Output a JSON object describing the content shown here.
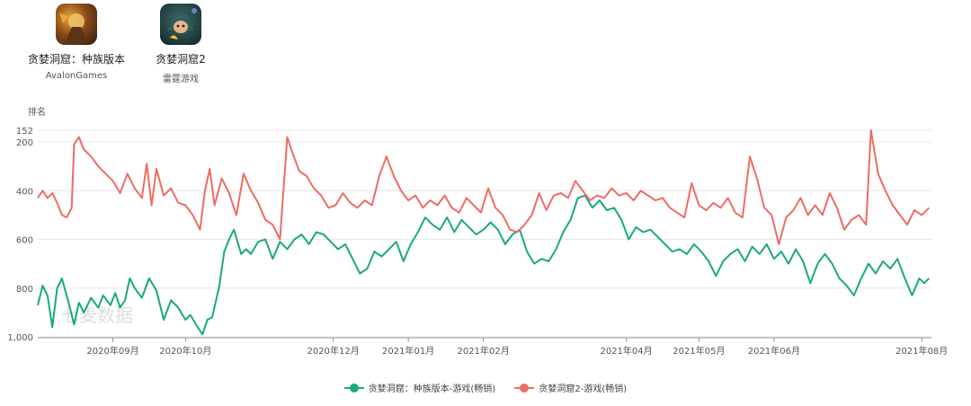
{
  "apps": [
    {
      "name": "贪婪洞窟：种族版本",
      "developer": "AvalonGames",
      "icon": "dungeon-warrior-app-icon"
    },
    {
      "name": "贪婪洞窟2",
      "developer": "雷霆游戏",
      "icon": "hooded-character-app-icon"
    }
  ],
  "watermark": "七麦数据",
  "colors": {
    "series1": "#1aa97e",
    "series2": "#ee6c63",
    "grid": "#e8e8e8"
  },
  "chart_data": {
    "type": "line",
    "ylabel": "排名",
    "y_inverted": true,
    "ylim": [
      152,
      1000
    ],
    "yticks": [
      152,
      200,
      400,
      600,
      800,
      1000
    ],
    "ytick_labels": [
      "152",
      "200",
      "400",
      "600",
      "800",
      "1,000"
    ],
    "xlim": [
      "2020-08-01",
      "2021-08-05"
    ],
    "xticks": [
      "2020-09-01",
      "2020-10-01",
      "2020-12-01",
      "2021-01-01",
      "2021-02-01",
      "2021-04-01",
      "2021-05-01",
      "2021-06-01",
      "2021-08-01"
    ],
    "xtick_labels": [
      "2020年09月",
      "2020年10月",
      "2020年12月",
      "2021年01月",
      "2021年02月",
      "2021年04月",
      "2021年05月",
      "2021年06月",
      "2021年08月"
    ],
    "grid": true,
    "legend_position": "bottom",
    "series": [
      {
        "name": "贪婪洞窟：种族版本-游戏(畅销)",
        "points": [
          [
            "2020-08-01",
            870
          ],
          [
            "2020-08-03",
            790
          ],
          [
            "2020-08-05",
            830
          ],
          [
            "2020-08-07",
            960
          ],
          [
            "2020-08-09",
            800
          ],
          [
            "2020-08-11",
            760
          ],
          [
            "2020-08-14",
            870
          ],
          [
            "2020-08-16",
            950
          ],
          [
            "2020-08-18",
            860
          ],
          [
            "2020-08-20",
            900
          ],
          [
            "2020-08-23",
            840
          ],
          [
            "2020-08-26",
            880
          ],
          [
            "2020-08-28",
            830
          ],
          [
            "2020-08-31",
            870
          ],
          [
            "2020-09-02",
            820
          ],
          [
            "2020-09-04",
            880
          ],
          [
            "2020-09-06",
            850
          ],
          [
            "2020-09-08",
            760
          ],
          [
            "2020-09-10",
            800
          ],
          [
            "2020-09-13",
            840
          ],
          [
            "2020-09-16",
            760
          ],
          [
            "2020-09-19",
            810
          ],
          [
            "2020-09-22",
            930
          ],
          [
            "2020-09-25",
            850
          ],
          [
            "2020-09-28",
            880
          ],
          [
            "2020-10-01",
            930
          ],
          [
            "2020-10-03",
            910
          ],
          [
            "2020-10-06",
            960
          ],
          [
            "2020-10-08",
            990
          ],
          [
            "2020-10-10",
            930
          ],
          [
            "2020-10-12",
            920
          ],
          [
            "2020-10-15",
            790
          ],
          [
            "2020-10-17",
            650
          ],
          [
            "2020-10-19",
            600
          ],
          [
            "2020-10-21",
            560
          ],
          [
            "2020-10-24",
            660
          ],
          [
            "2020-10-26",
            640
          ],
          [
            "2020-10-28",
            660
          ],
          [
            "2020-10-31",
            610
          ],
          [
            "2020-11-03",
            600
          ],
          [
            "2020-11-06",
            680
          ],
          [
            "2020-11-09",
            610
          ],
          [
            "2020-11-12",
            640
          ],
          [
            "2020-11-15",
            600
          ],
          [
            "2020-11-18",
            580
          ],
          [
            "2020-11-21",
            620
          ],
          [
            "2020-11-24",
            570
          ],
          [
            "2020-11-27",
            580
          ],
          [
            "2020-11-30",
            610
          ],
          [
            "2020-12-03",
            640
          ],
          [
            "2020-12-06",
            620
          ],
          [
            "2020-12-09",
            680
          ],
          [
            "2020-12-12",
            740
          ],
          [
            "2020-12-15",
            720
          ],
          [
            "2020-12-18",
            650
          ],
          [
            "2020-12-21",
            670
          ],
          [
            "2020-12-24",
            640
          ],
          [
            "2020-12-27",
            610
          ],
          [
            "2020-12-30",
            690
          ],
          [
            "2021-01-02",
            620
          ],
          [
            "2021-01-05",
            570
          ],
          [
            "2021-01-08",
            510
          ],
          [
            "2021-01-11",
            540
          ],
          [
            "2021-01-14",
            560
          ],
          [
            "2021-01-17",
            510
          ],
          [
            "2021-01-20",
            570
          ],
          [
            "2021-01-23",
            520
          ],
          [
            "2021-01-26",
            550
          ],
          [
            "2021-01-29",
            580
          ],
          [
            "2021-02-01",
            560
          ],
          [
            "2021-02-04",
            530
          ],
          [
            "2021-02-07",
            560
          ],
          [
            "2021-02-10",
            620
          ],
          [
            "2021-02-13",
            580
          ],
          [
            "2021-02-16",
            560
          ],
          [
            "2021-02-19",
            650
          ],
          [
            "2021-02-22",
            700
          ],
          [
            "2021-02-25",
            680
          ],
          [
            "2021-02-28",
            690
          ],
          [
            "2021-03-03",
            640
          ],
          [
            "2021-03-06",
            570
          ],
          [
            "2021-03-09",
            520
          ],
          [
            "2021-03-12",
            430
          ],
          [
            "2021-03-15",
            420
          ],
          [
            "2021-03-18",
            470
          ],
          [
            "2021-03-21",
            440
          ],
          [
            "2021-03-24",
            480
          ],
          [
            "2021-03-27",
            470
          ],
          [
            "2021-03-30",
            520
          ],
          [
            "2021-04-02",
            600
          ],
          [
            "2021-04-05",
            550
          ],
          [
            "2021-04-08",
            570
          ],
          [
            "2021-04-11",
            560
          ],
          [
            "2021-04-14",
            590
          ],
          [
            "2021-04-17",
            620
          ],
          [
            "2021-04-20",
            650
          ],
          [
            "2021-04-23",
            640
          ],
          [
            "2021-04-26",
            660
          ],
          [
            "2021-04-29",
            620
          ],
          [
            "2021-05-02",
            650
          ],
          [
            "2021-05-05",
            690
          ],
          [
            "2021-05-08",
            750
          ],
          [
            "2021-05-11",
            690
          ],
          [
            "2021-05-14",
            660
          ],
          [
            "2021-05-17",
            640
          ],
          [
            "2021-05-20",
            690
          ],
          [
            "2021-05-23",
            630
          ],
          [
            "2021-05-26",
            660
          ],
          [
            "2021-05-29",
            620
          ],
          [
            "2021-06-01",
            680
          ],
          [
            "2021-06-04",
            650
          ],
          [
            "2021-06-07",
            700
          ],
          [
            "2021-06-10",
            640
          ],
          [
            "2021-06-13",
            690
          ],
          [
            "2021-06-16",
            780
          ],
          [
            "2021-06-19",
            700
          ],
          [
            "2021-06-22",
            660
          ],
          [
            "2021-06-25",
            700
          ],
          [
            "2021-06-28",
            760
          ],
          [
            "2021-07-01",
            790
          ],
          [
            "2021-07-04",
            830
          ],
          [
            "2021-07-07",
            760
          ],
          [
            "2021-07-10",
            700
          ],
          [
            "2021-07-13",
            740
          ],
          [
            "2021-07-16",
            690
          ],
          [
            "2021-07-19",
            720
          ],
          [
            "2021-07-22",
            680
          ],
          [
            "2021-07-25",
            760
          ],
          [
            "2021-07-28",
            830
          ],
          [
            "2021-07-31",
            760
          ],
          [
            "2021-08-02",
            780
          ],
          [
            "2021-08-04",
            760
          ]
        ]
      },
      {
        "name": "贪婪洞窟2-游戏(畅销)",
        "points": [
          [
            "2020-08-01",
            430
          ],
          [
            "2020-08-03",
            400
          ],
          [
            "2020-08-05",
            430
          ],
          [
            "2020-08-07",
            410
          ],
          [
            "2020-08-09",
            450
          ],
          [
            "2020-08-11",
            500
          ],
          [
            "2020-08-13",
            510
          ],
          [
            "2020-08-15",
            470
          ],
          [
            "2020-08-16",
            210
          ],
          [
            "2020-08-18",
            180
          ],
          [
            "2020-08-20",
            230
          ],
          [
            "2020-08-23",
            260
          ],
          [
            "2020-08-26",
            300
          ],
          [
            "2020-08-29",
            330
          ],
          [
            "2020-09-01",
            360
          ],
          [
            "2020-09-04",
            410
          ],
          [
            "2020-09-07",
            330
          ],
          [
            "2020-09-10",
            390
          ],
          [
            "2020-09-13",
            430
          ],
          [
            "2020-09-15",
            290
          ],
          [
            "2020-09-17",
            460
          ],
          [
            "2020-09-19",
            310
          ],
          [
            "2020-09-22",
            420
          ],
          [
            "2020-09-25",
            390
          ],
          [
            "2020-09-28",
            450
          ],
          [
            "2020-10-01",
            460
          ],
          [
            "2020-10-04",
            500
          ],
          [
            "2020-10-07",
            560
          ],
          [
            "2020-10-09",
            400
          ],
          [
            "2020-10-11",
            310
          ],
          [
            "2020-10-13",
            460
          ],
          [
            "2020-10-16",
            350
          ],
          [
            "2020-10-19",
            410
          ],
          [
            "2020-10-22",
            500
          ],
          [
            "2020-10-25",
            330
          ],
          [
            "2020-10-28",
            400
          ],
          [
            "2020-10-31",
            450
          ],
          [
            "2020-11-03",
            520
          ],
          [
            "2020-11-06",
            540
          ],
          [
            "2020-11-09",
            600
          ],
          [
            "2020-11-12",
            180
          ],
          [
            "2020-11-14",
            240
          ],
          [
            "2020-11-17",
            320
          ],
          [
            "2020-11-20",
            340
          ],
          [
            "2020-11-23",
            390
          ],
          [
            "2020-11-26",
            420
          ],
          [
            "2020-11-29",
            470
          ],
          [
            "2020-12-02",
            460
          ],
          [
            "2020-12-05",
            410
          ],
          [
            "2020-12-08",
            450
          ],
          [
            "2020-12-11",
            470
          ],
          [
            "2020-12-14",
            440
          ],
          [
            "2020-12-17",
            460
          ],
          [
            "2020-12-20",
            340
          ],
          [
            "2020-12-23",
            260
          ],
          [
            "2020-12-26",
            340
          ],
          [
            "2020-12-29",
            400
          ],
          [
            "2021-01-01",
            440
          ],
          [
            "2021-01-04",
            420
          ],
          [
            "2021-01-07",
            470
          ],
          [
            "2021-01-10",
            440
          ],
          [
            "2021-01-13",
            460
          ],
          [
            "2021-01-16",
            420
          ],
          [
            "2021-01-19",
            470
          ],
          [
            "2021-01-22",
            490
          ],
          [
            "2021-01-25",
            430
          ],
          [
            "2021-01-28",
            460
          ],
          [
            "2021-01-31",
            490
          ],
          [
            "2021-02-03",
            390
          ],
          [
            "2021-02-06",
            470
          ],
          [
            "2021-02-09",
            500
          ],
          [
            "2021-02-12",
            560
          ],
          [
            "2021-02-15",
            570
          ],
          [
            "2021-02-18",
            540
          ],
          [
            "2021-02-21",
            500
          ],
          [
            "2021-02-24",
            410
          ],
          [
            "2021-02-27",
            480
          ],
          [
            "2021-03-02",
            420
          ],
          [
            "2021-03-05",
            410
          ],
          [
            "2021-03-08",
            430
          ],
          [
            "2021-03-11",
            360
          ],
          [
            "2021-03-14",
            400
          ],
          [
            "2021-03-17",
            440
          ],
          [
            "2021-03-20",
            420
          ],
          [
            "2021-03-23",
            430
          ],
          [
            "2021-03-26",
            390
          ],
          [
            "2021-03-29",
            420
          ],
          [
            "2021-04-01",
            410
          ],
          [
            "2021-04-04",
            440
          ],
          [
            "2021-04-07",
            400
          ],
          [
            "2021-04-10",
            420
          ],
          [
            "2021-04-13",
            440
          ],
          [
            "2021-04-16",
            430
          ],
          [
            "2021-04-19",
            470
          ],
          [
            "2021-04-22",
            490
          ],
          [
            "2021-04-25",
            510
          ],
          [
            "2021-04-28",
            370
          ],
          [
            "2021-05-01",
            460
          ],
          [
            "2021-05-04",
            480
          ],
          [
            "2021-05-07",
            450
          ],
          [
            "2021-05-10",
            470
          ],
          [
            "2021-05-13",
            430
          ],
          [
            "2021-05-16",
            490
          ],
          [
            "2021-05-19",
            510
          ],
          [
            "2021-05-22",
            260
          ],
          [
            "2021-05-25",
            350
          ],
          [
            "2021-05-28",
            470
          ],
          [
            "2021-05-31",
            500
          ],
          [
            "2021-06-03",
            620
          ],
          [
            "2021-06-06",
            510
          ],
          [
            "2021-06-09",
            480
          ],
          [
            "2021-06-12",
            430
          ],
          [
            "2021-06-15",
            500
          ],
          [
            "2021-06-18",
            460
          ],
          [
            "2021-06-21",
            500
          ],
          [
            "2021-06-24",
            410
          ],
          [
            "2021-06-27",
            470
          ],
          [
            "2021-06-30",
            560
          ],
          [
            "2021-07-03",
            520
          ],
          [
            "2021-07-06",
            500
          ],
          [
            "2021-07-09",
            540
          ],
          [
            "2021-07-11",
            152
          ],
          [
            "2021-07-14",
            330
          ],
          [
            "2021-07-17",
            400
          ],
          [
            "2021-07-20",
            460
          ],
          [
            "2021-07-23",
            500
          ],
          [
            "2021-07-26",
            540
          ],
          [
            "2021-07-29",
            480
          ],
          [
            "2021-08-01",
            500
          ],
          [
            "2021-08-04",
            470
          ]
        ]
      }
    ]
  }
}
